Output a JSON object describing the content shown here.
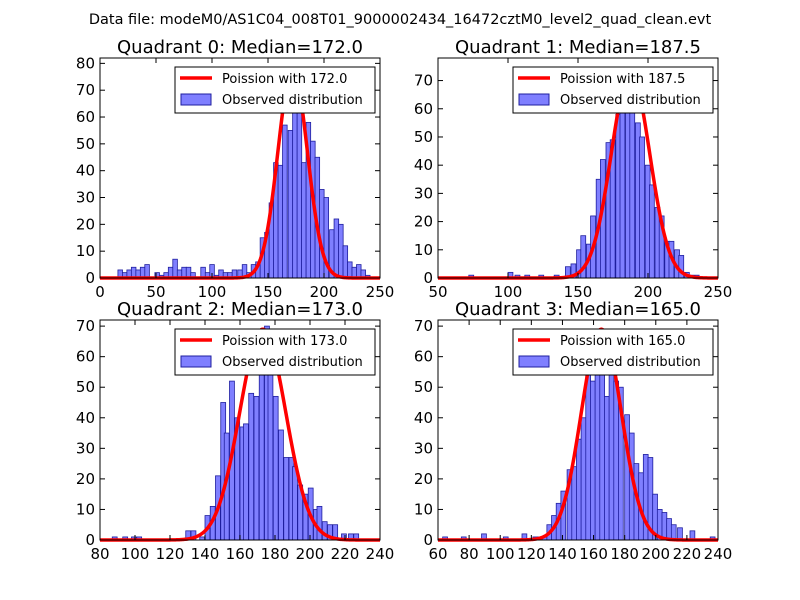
{
  "suptitle": "Data file: modeM0/AS1C04_008T01_9000002434_16472cztM0_level2_quad_clean.evt",
  "colors": {
    "bar_fill": "#7f7fff",
    "bar_edge": "#1f1f9f",
    "curve": "#ff0000",
    "axis": "#000000"
  },
  "chart_data": [
    {
      "type": "bar",
      "title": "Quadrant 0: Median=172.0",
      "xlim": [
        0,
        250
      ],
      "ylim": [
        0,
        82
      ],
      "xticks": [
        0,
        50,
        100,
        150,
        200,
        250
      ],
      "yticks": [
        0,
        10,
        20,
        30,
        40,
        50,
        60,
        70,
        80
      ],
      "legend": [
        "Poission with 172.0",
        "Observed distribution"
      ],
      "median": 172.0,
      "curve_peak": 78,
      "bin_width": 4.1,
      "bins_start": [
        16,
        20,
        24,
        28,
        32,
        36,
        40,
        44,
        49,
        53,
        57,
        61,
        65,
        69,
        73,
        77,
        81,
        86,
        90,
        94,
        98,
        102,
        106,
        110,
        114,
        118,
        123,
        127,
        131,
        135,
        139,
        143,
        147,
        151,
        155,
        159,
        163,
        168,
        172,
        176,
        180,
        184,
        188,
        192,
        196,
        200,
        205,
        209,
        213,
        217,
        221,
        225,
        229,
        233,
        237
      ],
      "values": [
        3,
        2,
        3,
        4,
        3,
        4,
        5,
        0,
        2,
        1,
        2,
        4,
        7,
        3,
        4,
        4,
        2,
        0,
        4,
        2,
        5,
        1,
        3,
        2,
        2,
        3,
        3,
        5,
        2,
        5,
        6,
        15,
        17,
        28,
        43,
        42,
        57,
        55,
        68,
        75,
        43,
        58,
        51,
        45,
        33,
        30,
        18,
        22,
        20,
        12,
        6,
        4,
        5,
        3,
        1
      ]
    },
    {
      "type": "bar",
      "title": "Quadrant 1: Median=187.5",
      "xlim": [
        50,
        250
      ],
      "ylim": [
        0,
        78
      ],
      "xticks": [
        50,
        100,
        150,
        200,
        250
      ],
      "yticks": [
        0,
        10,
        20,
        30,
        40,
        50,
        60,
        70
      ],
      "legend": [
        "Poission with 187.5",
        "Observed distribution"
      ],
      "median": 187.5,
      "curve_peak": 73,
      "bin_width": 3.5,
      "bins_start": [
        72,
        100,
        105,
        112,
        122,
        133,
        141,
        145,
        149,
        152,
        156,
        159,
        163,
        166,
        170,
        173,
        177,
        180,
        184,
        187,
        191,
        194,
        198,
        201,
        205,
        208,
        212,
        215,
        219,
        222,
        226,
        229,
        233
      ],
      "values": [
        1,
        2,
        1,
        1,
        1,
        1,
        4,
        5,
        10,
        15,
        12,
        22,
        35,
        42,
        48,
        49,
        58,
        72,
        63,
        64,
        55,
        50,
        40,
        33,
        25,
        22,
        13,
        13,
        10,
        8,
        2,
        1,
        1
      ]
    },
    {
      "type": "bar",
      "title": "Quadrant 2: Median=173.0",
      "xlim": [
        80,
        240
      ],
      "ylim": [
        0,
        72
      ],
      "xticks": [
        80,
        100,
        120,
        140,
        160,
        180,
        200,
        220,
        240
      ],
      "yticks": [
        0,
        10,
        20,
        30,
        40,
        50,
        60,
        70
      ],
      "legend": [
        "Poission with 173.0",
        "Observed distribution"
      ],
      "median": 173.0,
      "curve_peak": 69,
      "bin_width": 2.8,
      "bins_start": [
        87,
        93,
        98,
        101,
        129,
        132,
        137,
        140,
        143,
        146,
        149,
        151,
        154,
        157,
        160,
        162,
        165,
        168,
        171,
        174,
        176,
        179,
        182,
        185,
        188,
        190,
        193,
        196,
        199,
        202,
        204,
        207,
        210,
        213,
        218,
        222,
        225
      ],
      "values": [
        1,
        1,
        1,
        1,
        3,
        3,
        1,
        8,
        11,
        21,
        45,
        35,
        52,
        40,
        37,
        38,
        48,
        47,
        58,
        70,
        55,
        47,
        36,
        27,
        27,
        24,
        18,
        15,
        17,
        10,
        11,
        6,
        5,
        5,
        2,
        2,
        2
      ]
    },
    {
      "type": "bar",
      "title": "Quadrant 3: Median=165.0",
      "xlim": [
        60,
        240
      ],
      "ylim": [
        0,
        72
      ],
      "xticks": [
        60,
        80,
        100,
        120,
        140,
        160,
        180,
        200,
        220,
        240
      ],
      "yticks": [
        0,
        10,
        20,
        30,
        40,
        50,
        60,
        70
      ],
      "legend": [
        "Poission with 165.0",
        "Observed distribution"
      ],
      "median": 165.0,
      "curve_peak": 69,
      "bin_width": 3.1,
      "bins_start": [
        63,
        75,
        88,
        102,
        114,
        121,
        124,
        127,
        130,
        133,
        136,
        139,
        143,
        146,
        149,
        152,
        155,
        158,
        161,
        164,
        167,
        170,
        173,
        176,
        180,
        183,
        186,
        189,
        192,
        195,
        198,
        201,
        204,
        207,
        210,
        214,
        222,
        235
      ],
      "values": [
        1,
        1,
        2,
        1,
        2,
        1,
        1,
        1,
        5,
        8,
        12,
        16,
        23,
        24,
        33,
        40,
        58,
        52,
        60,
        62,
        47,
        57,
        52,
        50,
        41,
        35,
        25,
        22,
        28,
        27,
        15,
        10,
        9,
        7,
        5,
        4,
        3,
        1
      ]
    }
  ]
}
